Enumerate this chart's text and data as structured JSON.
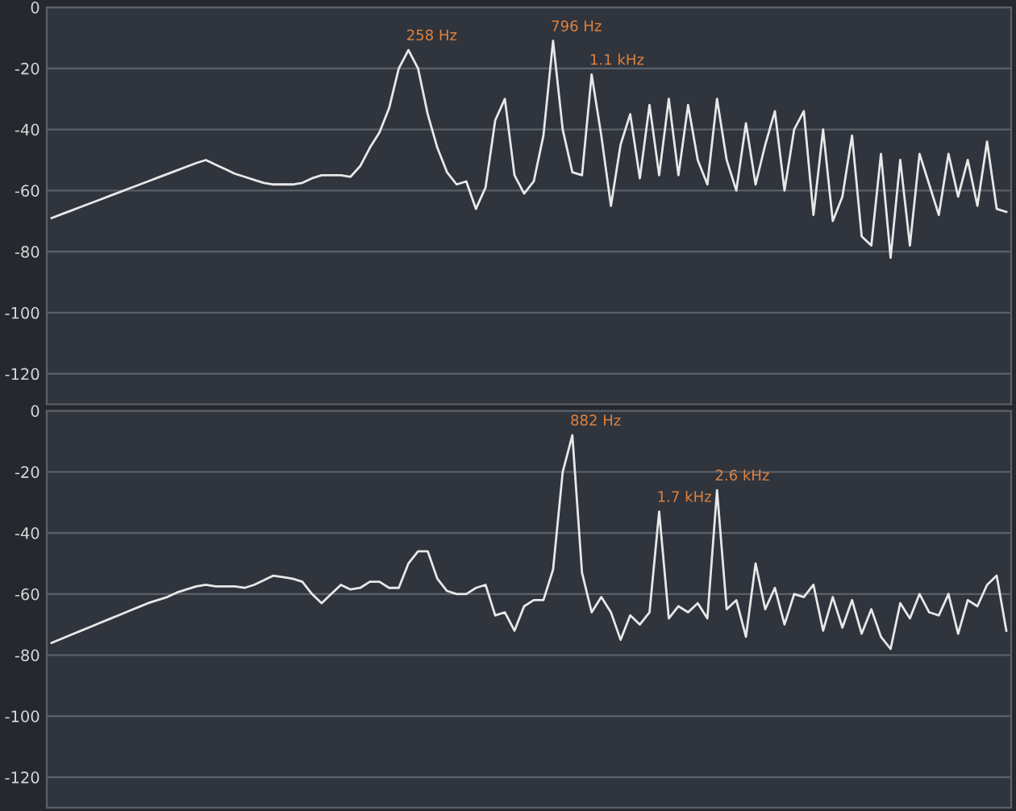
{
  "chart_data": [
    {
      "type": "line",
      "categories": [
        null,
        null,
        null,
        null,
        null,
        null,
        null,
        null,
        null,
        null,
        null,
        null,
        null,
        null,
        null,
        null,
        null,
        null,
        null,
        null,
        null,
        null,
        null,
        null,
        null,
        null,
        null,
        null,
        null,
        null,
        null,
        null,
        null,
        null,
        null,
        null,
        null,
        null,
        null,
        null,
        null,
        null,
        null,
        null,
        null,
        null,
        null,
        null,
        null,
        null,
        null,
        null,
        null,
        null,
        null,
        null,
        null,
        null,
        null,
        null,
        null,
        null,
        null,
        null,
        null,
        null,
        null,
        null,
        null,
        null,
        null,
        null,
        null,
        null,
        null,
        null,
        null,
        null,
        null,
        null,
        null,
        null,
        null,
        null,
        null,
        null,
        null,
        null,
        null,
        null,
        null,
        null,
        null,
        null,
        null,
        null,
        null,
        null,
        null,
        null
      ],
      "series": [
        {
          "color": "#e8e8e8",
          "values": [
            -69,
            -67.8,
            -66.6,
            -65.4,
            -64.2,
            -63,
            -61.8,
            -60.6,
            -59.4,
            -58.2,
            -57,
            -55.8,
            -54.6,
            -53.4,
            -52.2,
            -51,
            -50,
            -51.5,
            -53,
            -54.5,
            -55.5,
            -56.5,
            -57.5,
            -58,
            -58,
            -58,
            -57.5,
            -56,
            -55,
            -55,
            -55,
            -55.5,
            -52,
            -46,
            -41,
            -33,
            -20,
            -14,
            -20,
            -35,
            -46,
            -54,
            -58,
            -57,
            -66,
            -59,
            -37,
            -30,
            -55,
            -61,
            -57,
            -42,
            -11,
            -40,
            -54,
            -55,
            -22,
            -42,
            -65,
            -45,
            -35,
            -56,
            -32,
            -55,
            -30,
            -55,
            -32,
            -50,
            -58,
            -30,
            -50,
            -60,
            -38,
            -58,
            -45,
            -34,
            -60,
            -40,
            -34,
            -68,
            -40,
            -70,
            -62,
            -42,
            -75,
            -78,
            -48,
            -82,
            -50,
            -78,
            -48,
            -58,
            -68,
            -48,
            -62,
            -50,
            -65,
            -44,
            -66,
            -67
          ]
        }
      ],
      "ylim": [
        -130,
        0
      ],
      "yticks": [
        0,
        -20,
        -40,
        -60,
        -80,
        -100,
        -120
      ],
      "grid": "y",
      "tick_labels": "y",
      "annotations": [
        "258 Hz",
        "796 Hz",
        "1.1 kHz"
      ]
    },
    {
      "type": "line",
      "categories": [
        null,
        null,
        null,
        null,
        null,
        null,
        null,
        null,
        null,
        null,
        null,
        null,
        null,
        null,
        null,
        null,
        null,
        null,
        null,
        null,
        null,
        null,
        null,
        null,
        null,
        null,
        null,
        null,
        null,
        null,
        null,
        null,
        null,
        null,
        null,
        null,
        null,
        null,
        null,
        null,
        null,
        null,
        null,
        null,
        null,
        null,
        null,
        null,
        null,
        null,
        null,
        null,
        null,
        null,
        null,
        null,
        null,
        null,
        null,
        null,
        null,
        null,
        null,
        null,
        null,
        null,
        null,
        null,
        null,
        null,
        null,
        null,
        null,
        null,
        null,
        null,
        null,
        null,
        null,
        null,
        null,
        null,
        null,
        null,
        null,
        null,
        null,
        null,
        null,
        null,
        null,
        null,
        null,
        null,
        null,
        null,
        null,
        null,
        null,
        null
      ],
      "series": [
        {
          "color": "#e8e8e8",
          "values": [
            -76,
            -74.7,
            -73.4,
            -72.1,
            -70.8,
            -69.5,
            -68.2,
            -66.9,
            -65.6,
            -64.3,
            -63,
            -62,
            -61,
            -59.5,
            -58.5,
            -57.5,
            -57,
            -57.5,
            -57.5,
            -57.5,
            -58,
            -57,
            -55.5,
            -54,
            -54.5,
            -55,
            -56,
            -60,
            -63,
            -60,
            -57,
            -58.5,
            -58,
            -56,
            -56,
            -58,
            -58,
            -50,
            -46,
            -46,
            -55,
            -59,
            -60,
            -60,
            -58,
            -57,
            -67,
            -66,
            -72,
            -64,
            -62,
            -62,
            -52,
            -20,
            -8,
            -53,
            -66,
            -61,
            -66,
            -75,
            -67,
            -70,
            -66,
            -33,
            -68,
            -64,
            -66,
            -63,
            -68,
            -26,
            -65,
            -62,
            -74,
            -50,
            -65,
            -58,
            -70,
            -60,
            -61,
            -57,
            -72,
            -61,
            -71,
            -62,
            -73,
            -65,
            -74,
            -78,
            -63,
            -68,
            -60,
            -66,
            -67,
            -60,
            -73,
            -62,
            -64,
            -57,
            -54,
            -72
          ]
        }
      ],
      "ylim": [
        -130,
        0
      ],
      "yticks": [
        0,
        -20,
        -40,
        -60,
        -80,
        -100,
        -120
      ],
      "grid": "y",
      "tick_labels": "y",
      "annotations": [
        "882 Hz",
        "1.7 kHz",
        "2.6 kHz"
      ]
    }
  ]
}
